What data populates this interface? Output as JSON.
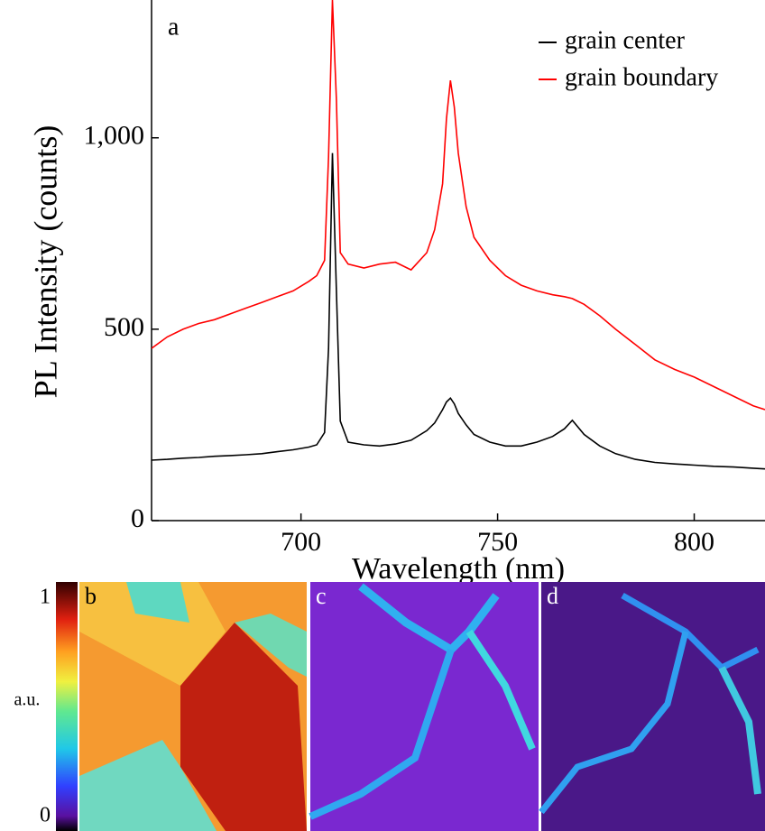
{
  "chart_data": {
    "type": "line",
    "panel_label": "a",
    "x_label": "Wavelength (nm)",
    "y_label": "PL Intensity (counts)",
    "x": [
      662,
      666,
      670,
      674,
      678,
      682,
      686,
      690,
      694,
      698,
      702,
      704,
      706,
      707,
      708,
      709,
      710,
      712,
      716,
      720,
      724,
      728,
      732,
      734,
      736,
      737,
      738,
      739,
      740,
      742,
      744,
      748,
      752,
      756,
      760,
      764,
      767,
      769,
      772,
      776,
      780,
      785,
      790,
      795,
      800,
      805,
      810,
      815,
      818
    ],
    "series": [
      {
        "name": "grain center",
        "color": "#000000",
        "values": [
          158,
          160,
          163,
          165,
          168,
          170,
          172,
          175,
          180,
          185,
          192,
          198,
          230,
          450,
          960,
          600,
          260,
          205,
          198,
          195,
          200,
          210,
          235,
          255,
          290,
          310,
          320,
          305,
          280,
          250,
          225,
          205,
          195,
          195,
          205,
          220,
          240,
          262,
          225,
          195,
          175,
          160,
          152,
          148,
          145,
          142,
          140,
          137,
          135
        ]
      },
      {
        "name": "grain boundary",
        "color": "#ff0000",
        "values": [
          450,
          480,
          500,
          515,
          525,
          540,
          555,
          570,
          585,
          600,
          625,
          640,
          680,
          950,
          1360,
          1100,
          700,
          670,
          660,
          670,
          675,
          655,
          700,
          760,
          880,
          1050,
          1150,
          1080,
          960,
          820,
          740,
          680,
          640,
          615,
          600,
          590,
          585,
          580,
          565,
          535,
          500,
          460,
          420,
          395,
          375,
          350,
          325,
          300,
          290
        ]
      }
    ],
    "xlim": [
      662,
      818
    ],
    "ylim": [
      0,
      1360
    ],
    "xticks": [
      700,
      750,
      800
    ],
    "yticks": [
      0,
      500,
      {
        "value": 1000,
        "label": "1,000"
      }
    ],
    "legend": "upper right"
  },
  "maps": {
    "labels": [
      "b",
      "c",
      "d"
    ],
    "colorbar": {
      "label": "a.u.",
      "ticks": [
        0,
        1
      ]
    }
  }
}
